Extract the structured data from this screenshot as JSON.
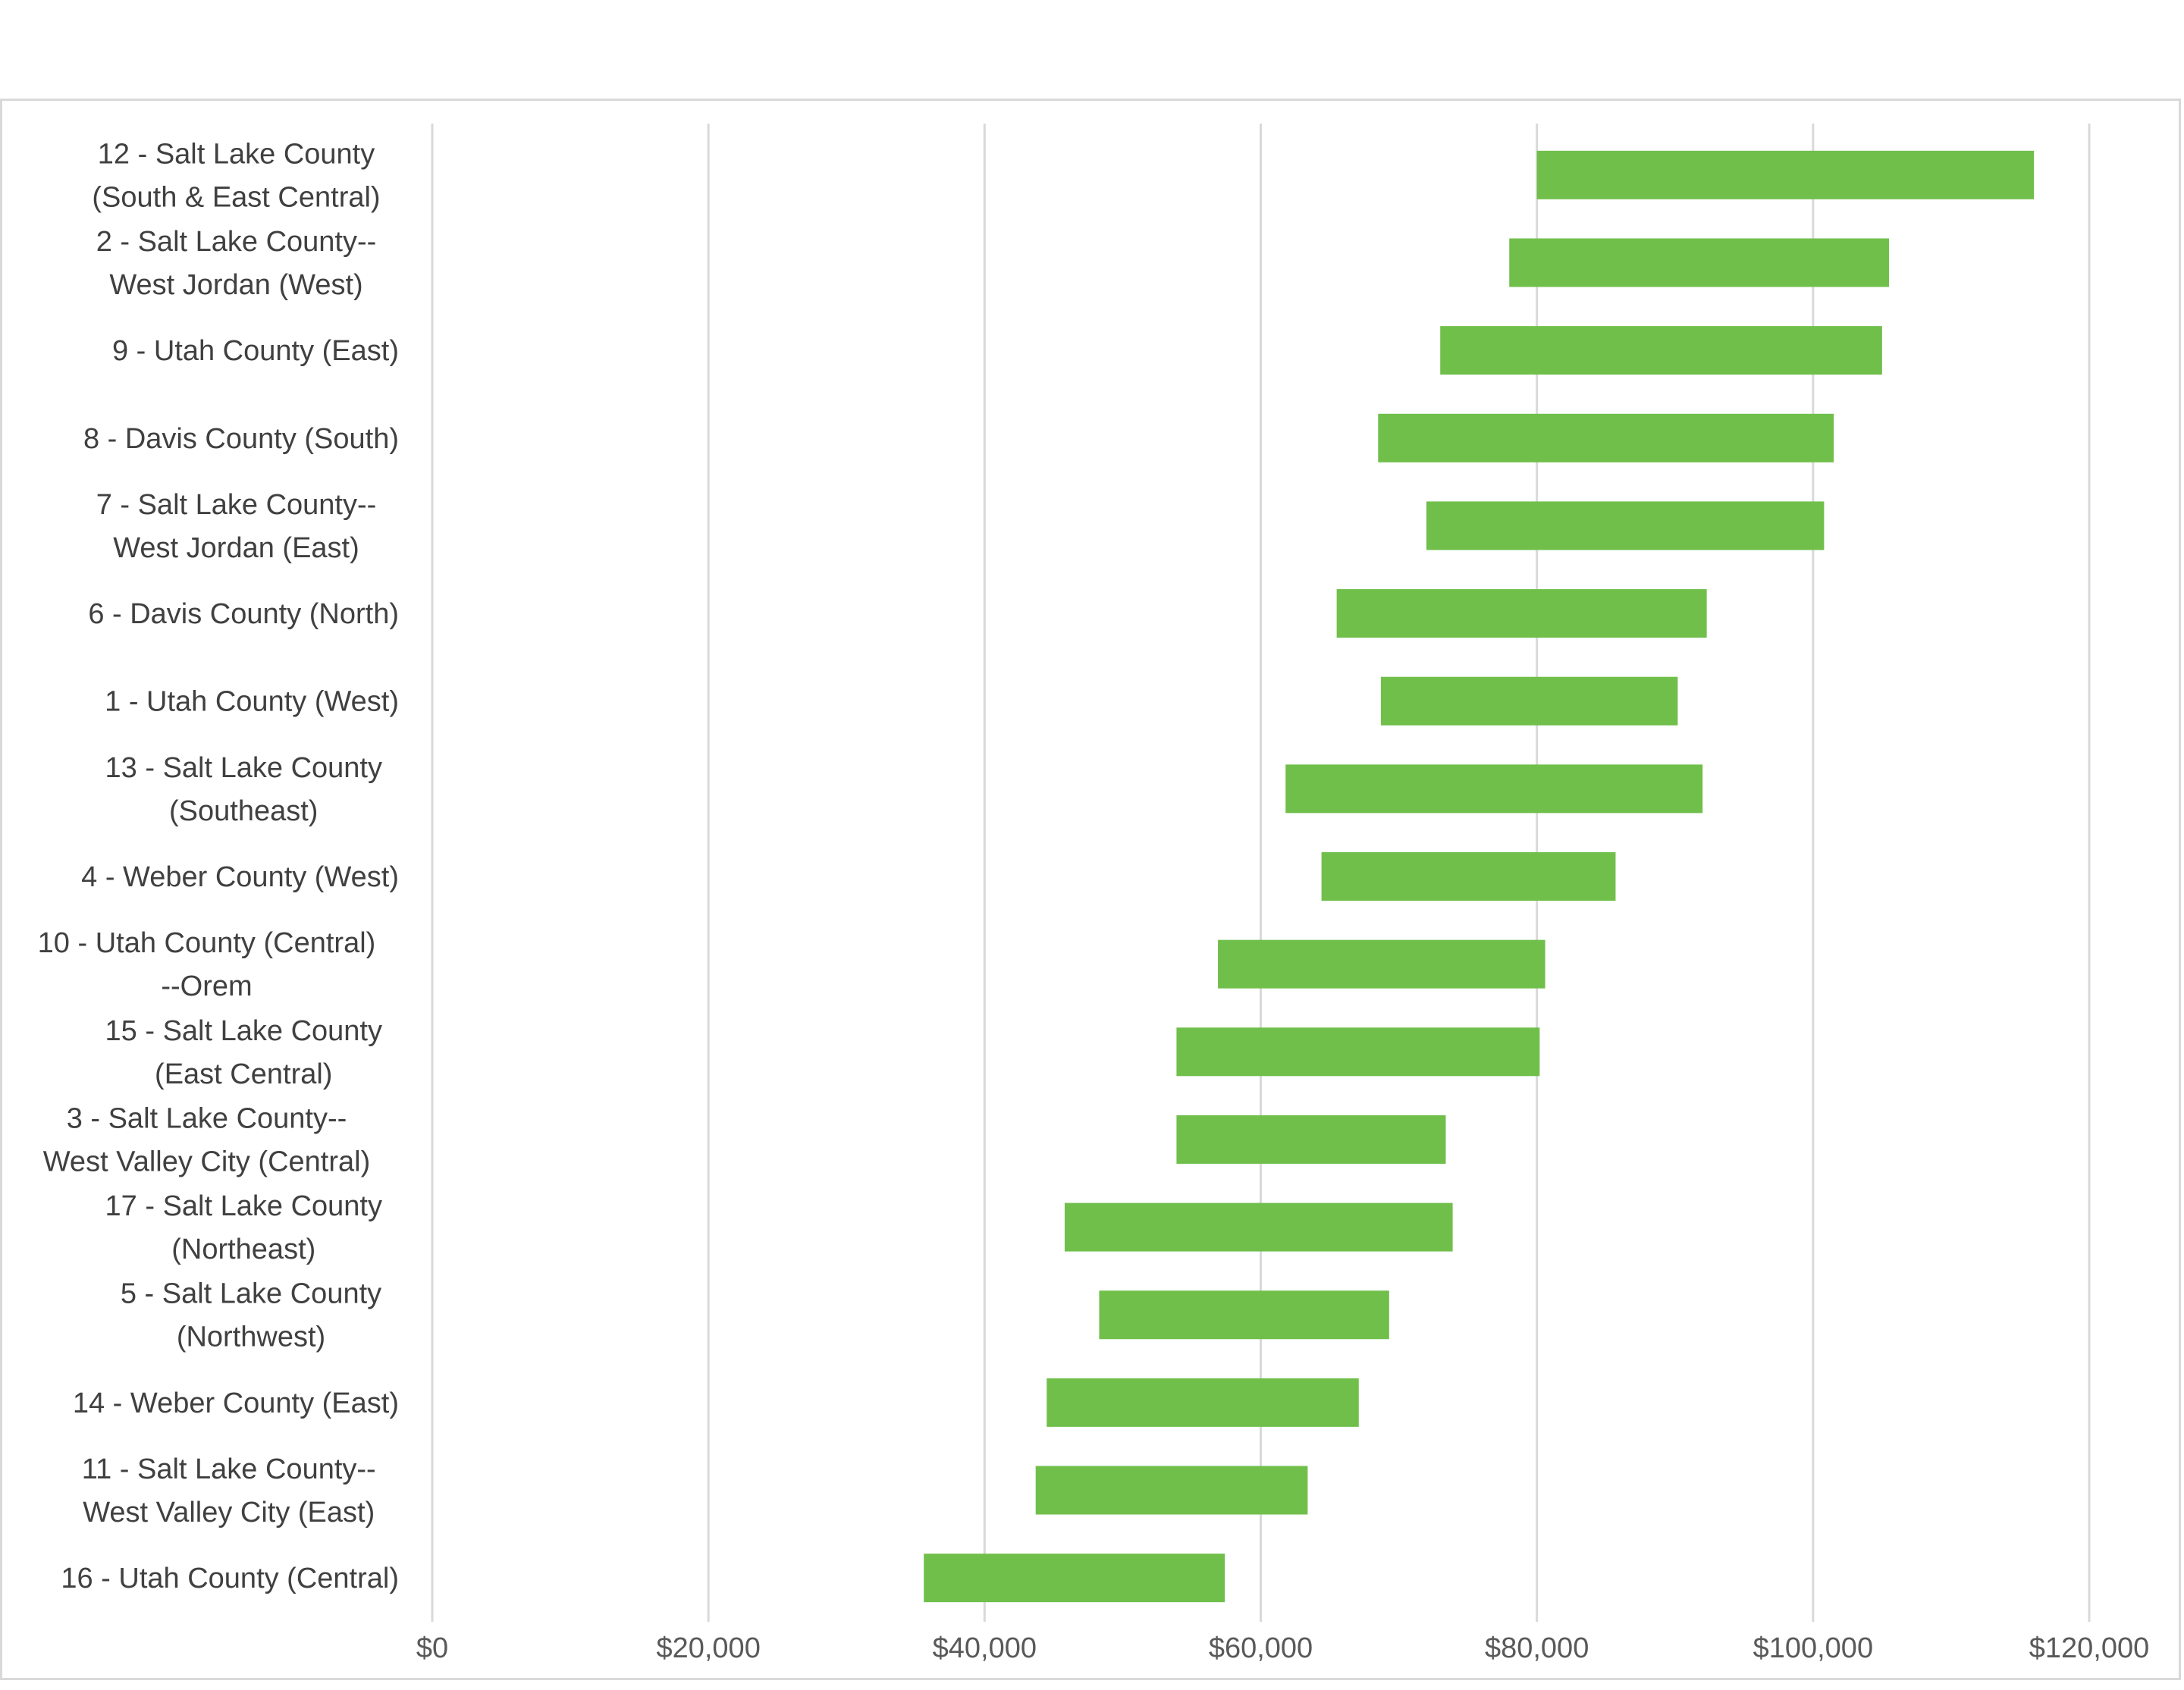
{
  "chart_data": {
    "type": "bar",
    "subtype": "floating-range-horizontal",
    "title": "",
    "xlabel": "",
    "ylabel": "",
    "xlim": [
      0,
      120000
    ],
    "x_ticks": [
      0,
      20000,
      40000,
      60000,
      80000,
      100000,
      120000
    ],
    "x_tick_labels": [
      "$0",
      "$20,000",
      "$40,000",
      "$60,000",
      "$80,000",
      "$100,000",
      "$120,000"
    ],
    "grid": "vertical",
    "legend": "none",
    "bar_color": "#70bf4b",
    "categories": [
      [
        "12 - Salt Lake County",
        "(South & East Central)"
      ],
      [
        "2 - Salt Lake County--",
        "West Jordan (West)"
      ],
      [
        "9 - Utah County (East)"
      ],
      [
        "8 - Davis County (South)"
      ],
      [
        "7 - Salt Lake County--",
        "West Jordan (East)"
      ],
      [
        "6 - Davis County (North)"
      ],
      [
        "1 - Utah County (West)"
      ],
      [
        "13 - Salt Lake County",
        "(Southeast)"
      ],
      [
        "4 - Weber County (West)"
      ],
      [
        "10 - Utah County (Central)",
        "--Orem"
      ],
      [
        "15 - Salt Lake County",
        "(East Central)"
      ],
      [
        "3 - Salt Lake County--",
        "West Valley City (Central)"
      ],
      [
        "17 - Salt Lake County",
        "(Northeast)"
      ],
      [
        "5 - Salt Lake County",
        "(Northwest)"
      ],
      [
        "14 - Weber County (East)"
      ],
      [
        "11 - Salt Lake County--",
        "West Valley City (East)"
      ],
      [
        "16 - Utah County (Central)"
      ]
    ],
    "ranges": [
      [
        80000,
        116000
      ],
      [
        78000,
        105500
      ],
      [
        73000,
        105000
      ],
      [
        68500,
        101500
      ],
      [
        72000,
        100800
      ],
      [
        65500,
        92300
      ],
      [
        68700,
        90200
      ],
      [
        61800,
        92000
      ],
      [
        64400,
        85700
      ],
      [
        56900,
        80600
      ],
      [
        53900,
        80200
      ],
      [
        53900,
        73400
      ],
      [
        45800,
        73900
      ],
      [
        48300,
        69300
      ],
      [
        44500,
        67100
      ],
      [
        43700,
        63400
      ],
      [
        35600,
        57400
      ]
    ]
  }
}
